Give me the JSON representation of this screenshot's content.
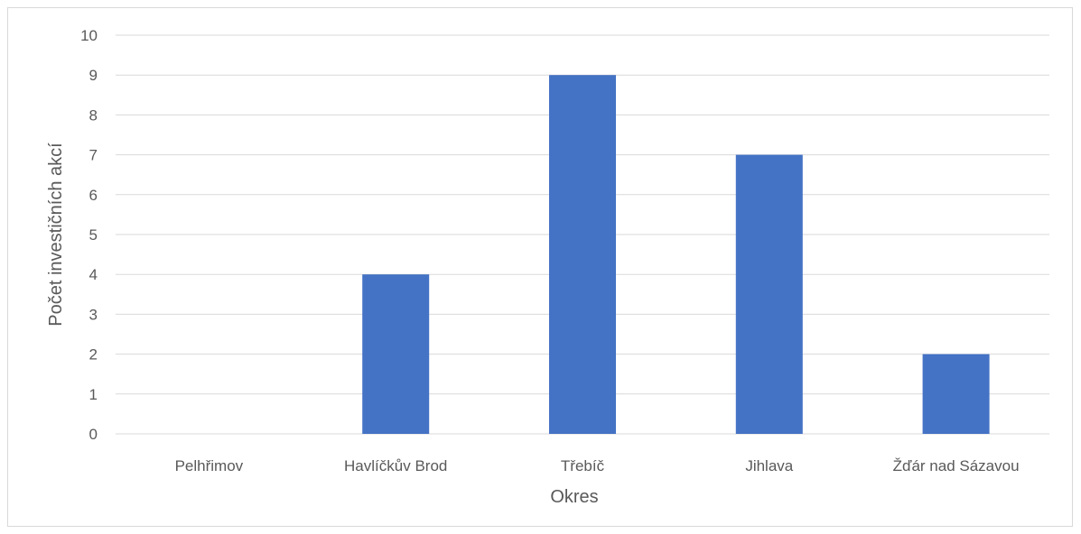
{
  "chart_data": {
    "type": "bar",
    "title": "",
    "xlabel": "Okres",
    "ylabel": "Počet investičních akcí",
    "categories": [
      "Pelhřimov",
      "Havlíčkův Brod",
      "Třebíč",
      "Jihlava",
      "Žďár nad Sázavou"
    ],
    "values": [
      0,
      4,
      9,
      7,
      2
    ],
    "ylim": [
      0,
      10
    ],
    "yticks": [
      "0",
      "1",
      "2",
      "3",
      "4",
      "5",
      "6",
      "7",
      "8",
      "9",
      "10"
    ],
    "grid": true,
    "legend": "none",
    "colors": {
      "bar": "#4472c4",
      "grid": "#d9d9d9",
      "text": "#595959"
    }
  }
}
